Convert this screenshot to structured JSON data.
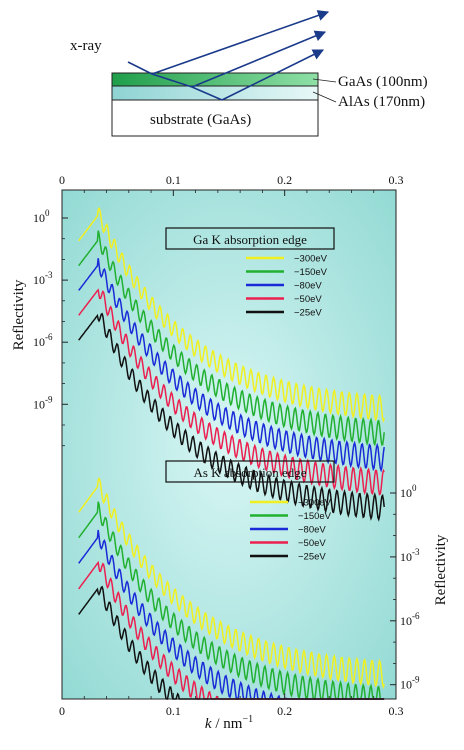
{
  "schematic": {
    "xray_label": "x-ray",
    "layers": [
      {
        "name": "GaAs (100nm)"
      },
      {
        "name": "AlAs (170nm)"
      },
      {
        "name": "substrate (GaAs)"
      }
    ],
    "colors": {
      "gaas": "#2fb35a",
      "alas": "#9ad8d8",
      "arrow": "#1a3a8a"
    }
  },
  "chart_data": {
    "type": "line",
    "xlabel_var": "k",
    "xlabel_unit": " / nm",
    "xlabel_exp": "−1",
    "ylabel": "Reflectivity",
    "xlim": [
      0,
      0.3
    ],
    "x_ticks": [
      "0",
      "0.1",
      "0.2",
      "0.3"
    ],
    "y_ticks_log": [
      0,
      -3,
      -6,
      -9
    ],
    "y_tick_base": "10",
    "y_tick_exps": [
      "0",
      "-3",
      "-6",
      "-9"
    ],
    "background": "#aee6e2",
    "panels": [
      {
        "title": "Ga  K  absorption edge",
        "ylabel_side": "left",
        "series": [
          {
            "name": "−300eV",
            "color": "#f0f020",
            "peak_log": 0.3,
            "end_log": -9.2
          },
          {
            "name": "−150eV",
            "color": "#22b030",
            "peak_log": -0.9,
            "end_log": -10.4
          },
          {
            "name": "−80eV",
            "color": "#1a2ad8",
            "peak_log": -2.1,
            "end_log": -11.6
          },
          {
            "name": "−50eV",
            "color": "#ec2050",
            "peak_log": -3.3,
            "end_log": -12.8
          },
          {
            "name": "−25eV",
            "color": "#111111",
            "peak_log": -4.5,
            "end_log": -14.0
          }
        ]
      },
      {
        "title": "As  K  absorption edge",
        "ylabel_side": "right",
        "series": [
          {
            "name": "−300eV",
            "color": "#f0f020",
            "peak_log": 0.5,
            "end_log": -8.5
          },
          {
            "name": "−150eV",
            "color": "#22b030",
            "peak_log": -0.7,
            "end_log": -9.7
          },
          {
            "name": "−80eV",
            "color": "#1a2ad8",
            "peak_log": -1.9,
            "end_log": -10.9
          },
          {
            "name": "−50eV",
            "color": "#ec2050",
            "peak_log": -3.1,
            "end_log": -12.1
          },
          {
            "name": "−25eV",
            "color": "#111111",
            "peak_log": -4.3,
            "end_log": -13.3
          }
        ]
      }
    ]
  }
}
